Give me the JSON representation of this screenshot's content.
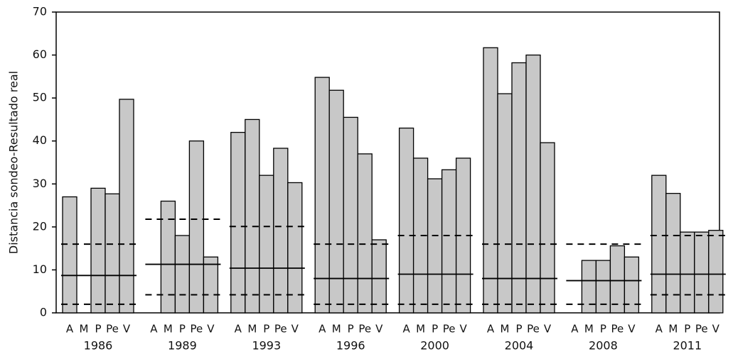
{
  "chart_data": {
    "type": "grouped-bar",
    "ylabel": "Distancia sondeo-Resultado real",
    "ylim": [
      0,
      70
    ],
    "yticks": [
      0,
      10,
      20,
      30,
      40,
      50,
      60,
      70
    ],
    "subcategories": [
      "A",
      "M",
      "P",
      "Pe",
      "V"
    ],
    "color": "#c8c8c8",
    "groups": [
      {
        "label": "1986",
        "values": [
          27,
          null,
          29,
          27.7,
          49.7
        ],
        "upper": 16,
        "mean": 8.7,
        "lower": 2
      },
      {
        "label": "1989",
        "values": [
          null,
          26,
          18,
          40,
          13
        ],
        "upper": 21.8,
        "mean": 11.3,
        "lower": 4.2
      },
      {
        "label": "1993",
        "values": [
          42,
          45,
          32,
          38.3,
          30.3
        ],
        "upper": 20.1,
        "mean": 10.4,
        "lower": 4.2
      },
      {
        "label": "1996",
        "values": [
          54.8,
          51.8,
          45.5,
          37,
          17
        ],
        "upper": 16,
        "mean": 8,
        "lower": 2
      },
      {
        "label": "2000",
        "values": [
          43,
          36,
          31.2,
          33.3,
          36
        ],
        "upper": 18,
        "mean": 9,
        "lower": 2
      },
      {
        "label": "2004",
        "values": [
          61.7,
          51,
          58.2,
          60,
          39.6
        ],
        "upper": 16,
        "mean": 8,
        "lower": 2
      },
      {
        "label": "2008",
        "values": [
          null,
          12.2,
          12.2,
          15.6,
          13
        ],
        "upper": 16,
        "mean": 7.5,
        "lower": 2
      },
      {
        "label": "2011",
        "values": [
          32,
          27.8,
          18.8,
          18.8,
          19.2
        ],
        "upper": 18,
        "mean": 9,
        "lower": 4.2
      }
    ]
  }
}
